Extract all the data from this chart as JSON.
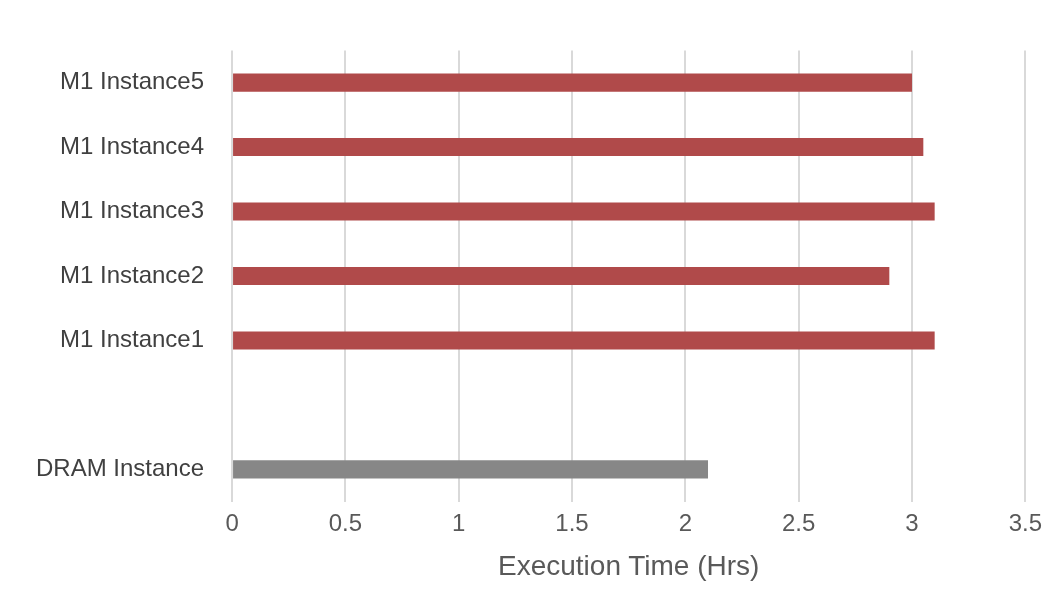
{
  "chart_data": {
    "type": "bar",
    "orientation": "horizontal",
    "xlabel": "Execution Time (Hrs)",
    "categories": [
      "M1 Instance5",
      "M1 Instance4",
      "M1 Instance3",
      "M1 Instance2",
      "M1 Instance1",
      null,
      "DRAM Instance"
    ],
    "values": [
      3,
      3.05,
      3.1,
      2.9,
      3.1,
      null,
      2.1
    ],
    "colors": [
      "#b04a4a",
      "#b04a4a",
      "#b04a4a",
      "#b04a4a",
      "#b04a4a",
      "#b04a4a",
      "#878787"
    ],
    "xlim": [
      0,
      3.5
    ],
    "xticks": [
      0,
      0.5,
      1,
      1.5,
      2,
      2.5,
      3,
      3.5
    ],
    "grid": "x",
    "legend": false
  }
}
